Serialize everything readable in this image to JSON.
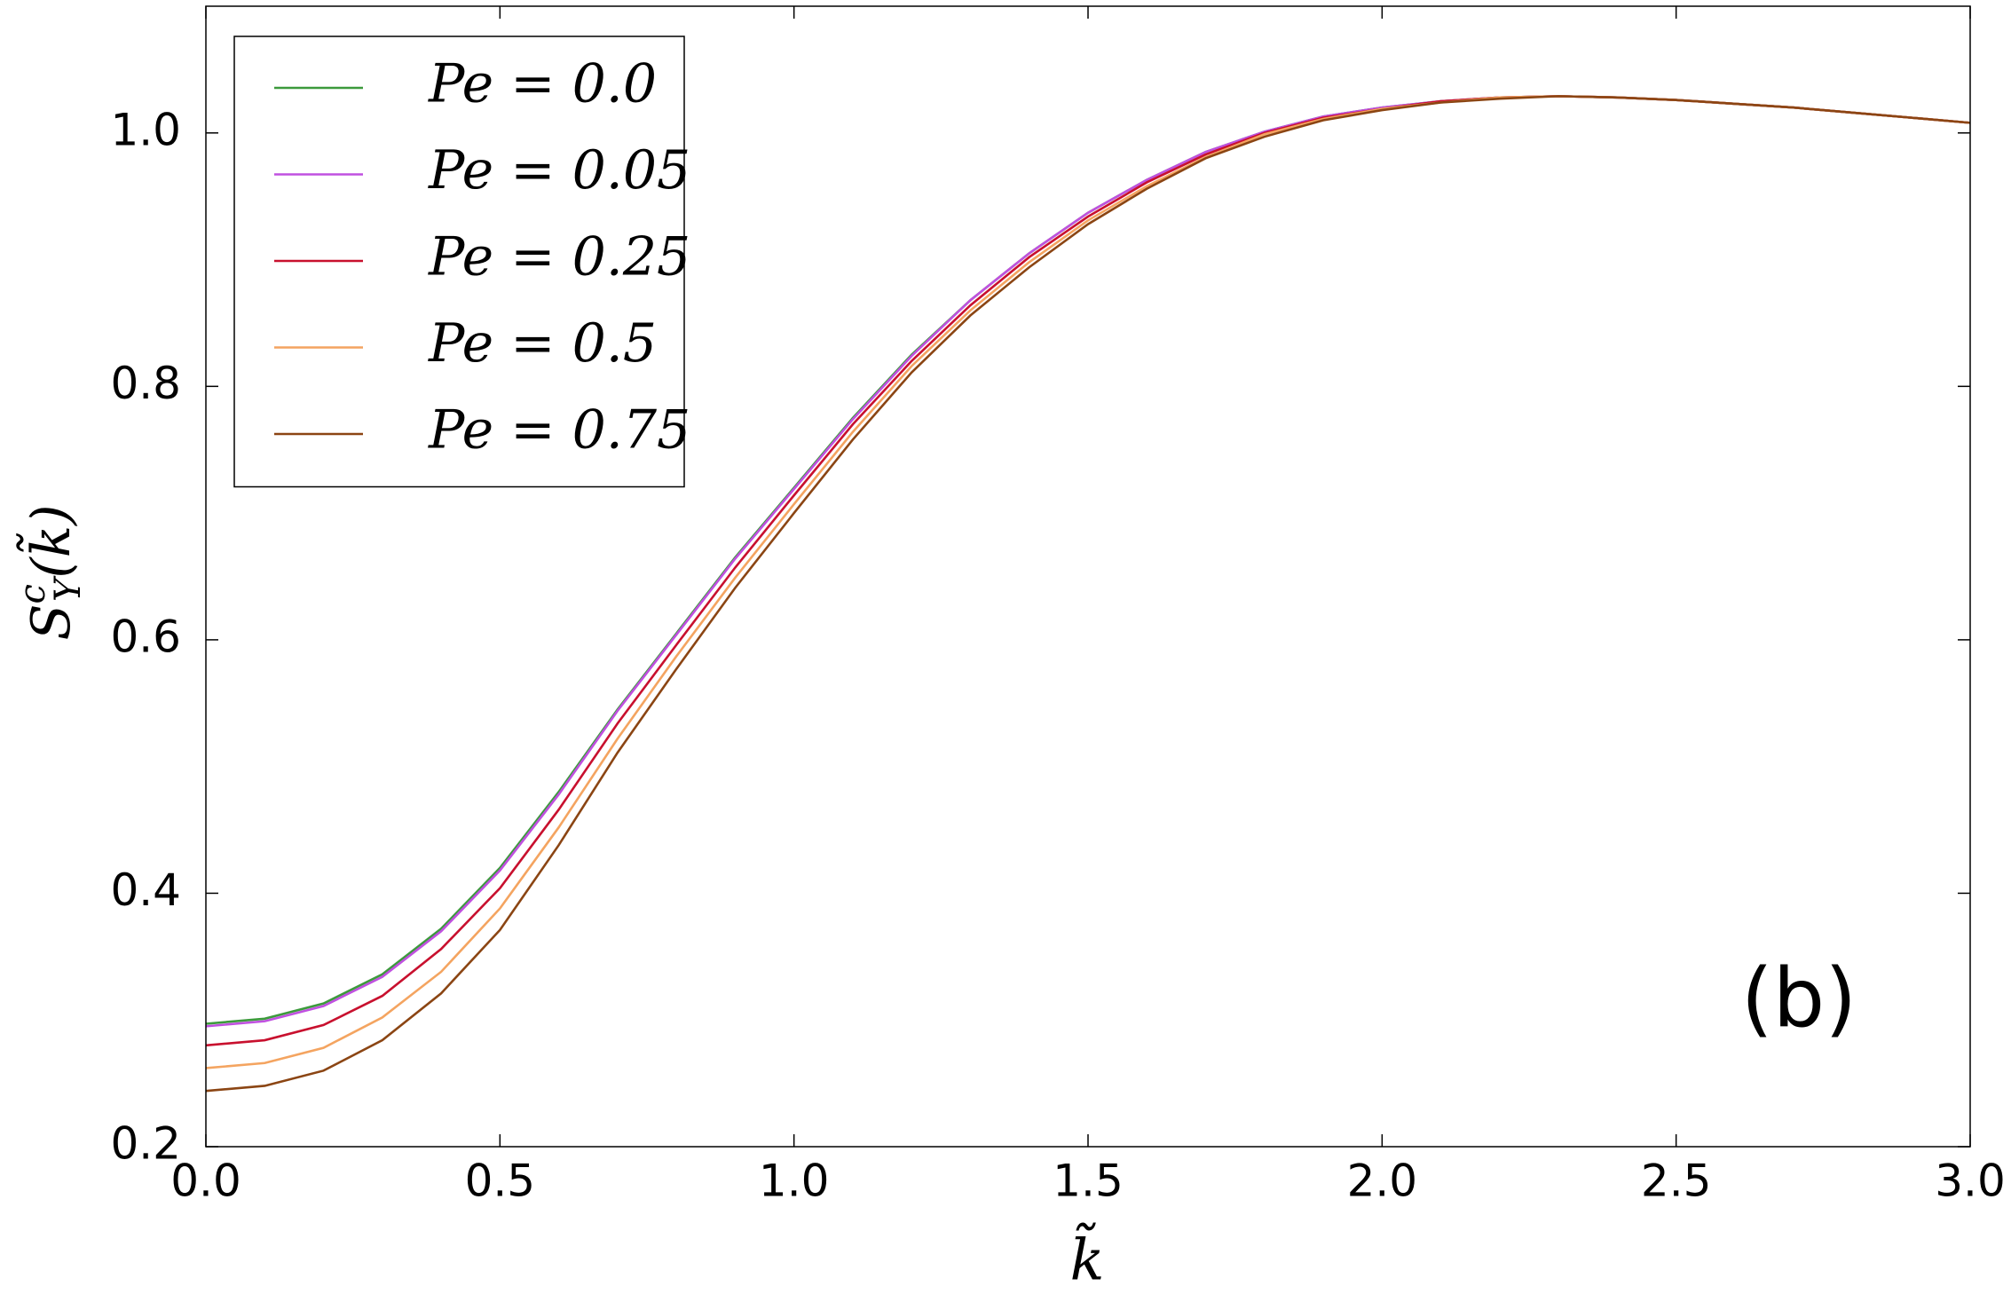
{
  "chart_data": {
    "type": "line",
    "x_label": "k̃",
    "y_label": {
      "base": "S",
      "sup": "c",
      "sub": "Y",
      "arg": "(k̃)"
    },
    "annotation": "(b)",
    "x": [
      0.0,
      0.1,
      0.2,
      0.3,
      0.4,
      0.5,
      0.6,
      0.7,
      0.8,
      0.9,
      1.0,
      1.1,
      1.2,
      1.3,
      1.4,
      1.5,
      1.6,
      1.7,
      1.8,
      1.9,
      2.0,
      2.1,
      2.2,
      2.3,
      2.4,
      2.5,
      2.6,
      2.7,
      2.8,
      2.9,
      3.0
    ],
    "series": [
      {
        "name": "Pe = 0.0",
        "color": "#3c9a3c",
        "values": [
          0.297,
          0.301,
          0.313,
          0.336,
          0.372,
          0.42,
          0.48,
          0.545,
          0.605,
          0.665,
          0.72,
          0.775,
          0.825,
          0.868,
          0.905,
          0.937,
          0.963,
          0.985,
          1.001,
          1.013,
          1.02,
          1.025,
          1.028,
          1.029,
          1.028,
          1.026,
          1.023,
          1.02,
          1.016,
          1.012,
          1.008
        ]
      },
      {
        "name": "Pe = 0.05",
        "color": "#c050e0",
        "values": [
          0.295,
          0.299,
          0.311,
          0.334,
          0.37,
          0.418,
          0.478,
          0.544,
          0.604,
          0.664,
          0.719,
          0.774,
          0.824,
          0.868,
          0.905,
          0.937,
          0.963,
          0.985,
          1.001,
          1.013,
          1.02,
          1.025,
          1.028,
          1.029,
          1.028,
          1.026,
          1.023,
          1.02,
          1.016,
          1.012,
          1.008
        ]
      },
      {
        "name": "Pe = 0.25",
        "color": "#c8102e",
        "values": [
          0.28,
          0.284,
          0.296,
          0.319,
          0.356,
          0.404,
          0.466,
          0.534,
          0.596,
          0.657,
          0.714,
          0.77,
          0.82,
          0.864,
          0.902,
          0.934,
          0.961,
          0.983,
          1.0,
          1.012,
          1.019,
          1.025,
          1.028,
          1.029,
          1.028,
          1.026,
          1.023,
          1.02,
          1.016,
          1.012,
          1.008
        ]
      },
      {
        "name": "Pe = 0.5",
        "color": "#f4a460",
        "values": [
          0.262,
          0.266,
          0.278,
          0.302,
          0.338,
          0.388,
          0.452,
          0.522,
          0.587,
          0.649,
          0.707,
          0.764,
          0.816,
          0.86,
          0.898,
          0.931,
          0.958,
          0.981,
          0.999,
          1.011,
          1.019,
          1.024,
          1.028,
          1.029,
          1.028,
          1.026,
          1.023,
          1.02,
          1.016,
          1.012,
          1.008
        ]
      },
      {
        "name": "Pe = 0.75",
        "color": "#8b4513",
        "values": [
          0.244,
          0.248,
          0.26,
          0.284,
          0.321,
          0.371,
          0.438,
          0.511,
          0.577,
          0.641,
          0.7,
          0.758,
          0.811,
          0.856,
          0.894,
          0.928,
          0.956,
          0.98,
          0.997,
          1.01,
          1.018,
          1.024,
          1.027,
          1.029,
          1.028,
          1.026,
          1.023,
          1.02,
          1.016,
          1.012,
          1.008
        ]
      }
    ],
    "xlim": [
      0.0,
      3.0
    ],
    "xticks": [
      {
        "value": 0.0,
        "label": "0.0"
      },
      0.5,
      {
        "value": 1.0,
        "label": "1.0"
      },
      1.5,
      {
        "value": 2.0,
        "label": "2.0"
      },
      2.5,
      {
        "value": 3.0,
        "label": "3.0"
      }
    ],
    "ylim": [
      0.2,
      1.1
    ],
    "yticks": [
      0.2,
      0.4,
      0.6,
      0.8,
      {
        "value": 1.0,
        "label": "1.0"
      }
    ],
    "grid": false,
    "legend": "upper left"
  }
}
